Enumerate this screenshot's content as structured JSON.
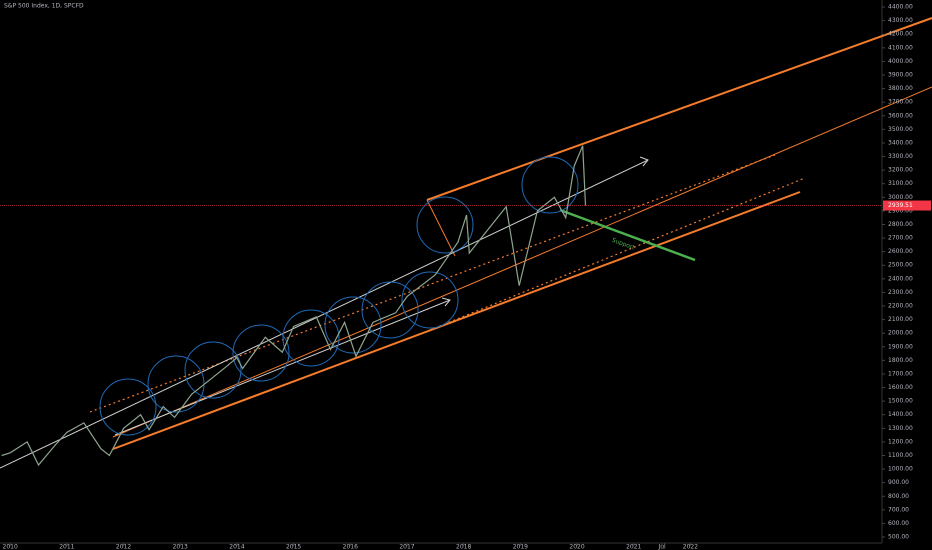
{
  "chart_data": {
    "type": "line",
    "title": "S&P 500 Index, 1D, SPCFD",
    "x": [
      2009.85,
      2010.0,
      2010.3,
      2010.5,
      2010.8,
      2011.0,
      2011.3,
      2011.6,
      2011.75,
      2012.0,
      2012.3,
      2012.45,
      2012.7,
      2012.9,
      2013.2,
      2013.5,
      2013.8,
      2014.0,
      2014.1,
      2014.5,
      2014.8,
      2015.0,
      2015.4,
      2015.65,
      2015.9,
      2016.1,
      2016.4,
      2016.8,
      2017.0,
      2017.5,
      2017.9,
      2018.05,
      2018.1,
      2018.5,
      2018.75,
      2018.98,
      2019.3,
      2019.6,
      2019.8,
      2019.95,
      2020.1,
      2020.15
    ],
    "series": [
      {
        "name": "S&P 500 Index",
        "color": "#8fa58f",
        "values": [
          1100,
          1120,
          1200,
          1030,
          1180,
          1270,
          1340,
          1150,
          1100,
          1300,
          1400,
          1290,
          1460,
          1380,
          1550,
          1650,
          1750,
          1820,
          1740,
          1970,
          1860,
          2050,
          2120,
          1880,
          2080,
          1830,
          2080,
          2150,
          2270,
          2430,
          2670,
          2870,
          2590,
          2800,
          2930,
          2350,
          2900,
          3000,
          2850,
          3230,
          3380,
          2940
        ]
      }
    ],
    "xlim": [
      2009.82,
      2025.38
    ],
    "xticks": [
      2010,
      2011,
      2012,
      2013,
      2014,
      2015,
      2016,
      2017,
      2018,
      2019,
      2020,
      2021,
      {
        "value": 2021.5,
        "label": "Jul"
      },
      2022
    ],
    "ylim": [
      456,
      4452
    ],
    "yticks": [
      {
        "value": 4400,
        "label": "4400.00"
      },
      {
        "value": 4300,
        "label": "4300.00"
      },
      {
        "value": 4200,
        "label": "4200.00"
      },
      {
        "value": 4100,
        "label": "4100.00"
      },
      {
        "value": 4000,
        "label": "4000.00"
      },
      {
        "value": 3900,
        "label": "3900.00"
      },
      {
        "value": 3800,
        "label": "3800.00"
      },
      {
        "value": 3700,
        "label": "3700.00"
      },
      {
        "value": 3600,
        "label": "3600.00"
      },
      {
        "value": 3500,
        "label": "3500.00"
      },
      {
        "value": 3400,
        "label": "3400.00"
      },
      {
        "value": 3300,
        "label": "3300.00"
      },
      {
        "value": 3200,
        "label": "3200.00"
      },
      {
        "value": 3100,
        "label": "3100.00"
      },
      {
        "value": 3000,
        "label": "3000.00"
      },
      {
        "value": 2900,
        "label": "2900.00"
      },
      {
        "value": 2800,
        "label": "2800.00"
      },
      {
        "value": 2700,
        "label": "2700.00"
      },
      {
        "value": 2600,
        "label": "2600.00"
      },
      {
        "value": 2500,
        "label": "2500.00"
      },
      {
        "value": 2400,
        "label": "2400.00"
      },
      {
        "value": 2300,
        "label": "2300.00"
      },
      {
        "value": 2200,
        "label": "2200.00"
      },
      {
        "value": 2100,
        "label": "2100.00"
      },
      {
        "value": 2000,
        "label": "2000.00"
      },
      {
        "value": 1900,
        "label": "1900.00"
      },
      {
        "value": 1800,
        "label": "1800.00"
      },
      {
        "value": 1700,
        "label": "1700.00"
      },
      {
        "value": 1600,
        "label": "1600.00"
      },
      {
        "value": 1500,
        "label": "1500.00"
      },
      {
        "value": 1400,
        "label": "1400.00"
      },
      {
        "value": 1300,
        "label": "1300.00"
      },
      {
        "value": 1200,
        "label": "1200.00"
      },
      {
        "value": 1100,
        "label": "1100.00"
      },
      {
        "value": 1000,
        "label": "1000.00"
      },
      {
        "value": 900,
        "label": "900.00"
      },
      {
        "value": 800,
        "label": "800.00"
      },
      {
        "value": 700,
        "label": "700.00"
      },
      {
        "value": 600,
        "label": "600.00"
      },
      {
        "value": 500,
        "label": "500.00"
      }
    ],
    "last_price": 2939.51,
    "annotation": "Support"
  }
}
